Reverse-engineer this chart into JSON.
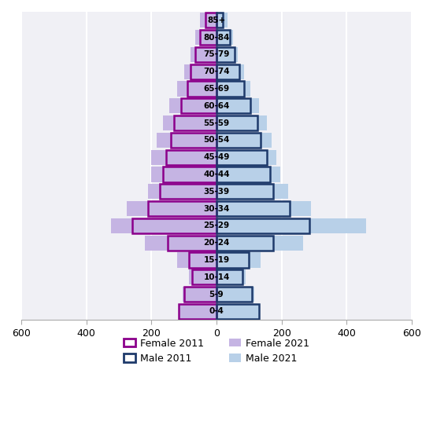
{
  "age_groups": [
    "0-4",
    "5-9",
    "10-14",
    "15-19",
    "20-24",
    "25-29",
    "30-34",
    "35-39",
    "40-44",
    "45-49",
    "50-54",
    "55-59",
    "60-64",
    "65-69",
    "70-74",
    "75-79",
    "80-84",
    "85+"
  ],
  "female_2011": [
    115,
    100,
    75,
    85,
    150,
    260,
    210,
    175,
    165,
    155,
    140,
    130,
    110,
    90,
    80,
    65,
    50,
    35
  ],
  "male_2011": [
    130,
    110,
    80,
    100,
    175,
    285,
    225,
    175,
    165,
    155,
    135,
    125,
    105,
    85,
    70,
    55,
    40,
    20
  ],
  "female_2021": [
    115,
    105,
    85,
    120,
    220,
    325,
    275,
    210,
    200,
    200,
    185,
    165,
    145,
    120,
    100,
    80,
    65,
    50
  ],
  "male_2021": [
    130,
    115,
    90,
    135,
    265,
    460,
    290,
    220,
    195,
    185,
    170,
    155,
    130,
    105,
    85,
    65,
    50,
    35
  ],
  "female_2011_color": "#8B008B",
  "male_2011_color": "#1E3A6B",
  "female_2021_color": "#C5B4E3",
  "male_2021_color": "#B8D0E8",
  "xlim": 600,
  "background_color": "#ffffff",
  "plot_bg_color": "#f0f0f5",
  "grid_color": "#ffffff"
}
